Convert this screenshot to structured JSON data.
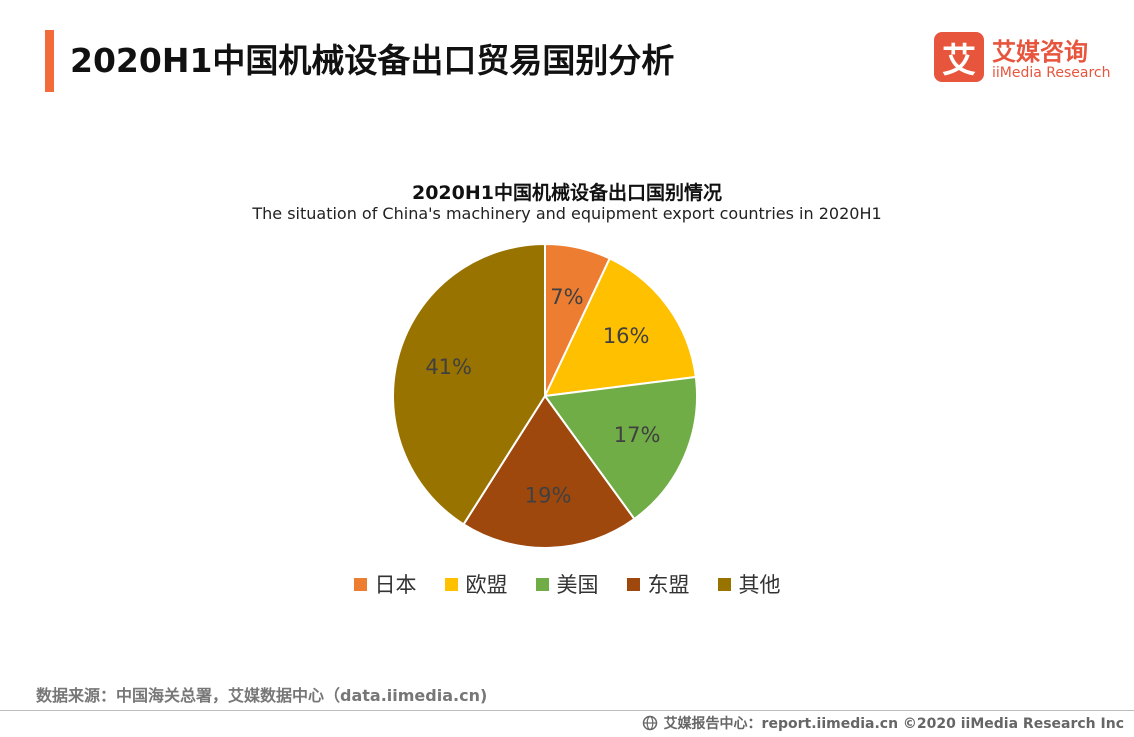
{
  "header": {
    "title": "2020H1中国机械设备出口贸易国别分析",
    "accent_color": "#F26B3A"
  },
  "logo": {
    "mark_char": "艾",
    "name_cn": "艾媒咨询",
    "name_en": "iiMedia Research",
    "color": "#E8553D"
  },
  "chart_data": {
    "type": "pie",
    "title": "2020H1中国机械设备出口国别情况",
    "subtitle": "The situation of China's machinery and equipment export countries in 2020H1",
    "slices": [
      {
        "name": "日本",
        "value": 7,
        "label": "7%",
        "color": "#ED7D31"
      },
      {
        "name": "欧盟",
        "value": 16,
        "label": "16%",
        "color": "#FFC000"
      },
      {
        "name": "美国",
        "value": 17,
        "label": "17%",
        "color": "#70AD47"
      },
      {
        "name": "东盟",
        "value": 19,
        "label": "19%",
        "color": "#9E480E"
      },
      {
        "name": "其他",
        "value": 41,
        "label": "41%",
        "color": "#997300"
      }
    ],
    "legend_position": "bottom"
  },
  "source": {
    "text": "数据来源：中国海关总署，艾媒数据中心（data.iimedia.cn)"
  },
  "footer": {
    "icon": "globe-icon",
    "text": "艾媒报告中心：report.iimedia.cn  ©2020  iiMedia Research  Inc"
  }
}
